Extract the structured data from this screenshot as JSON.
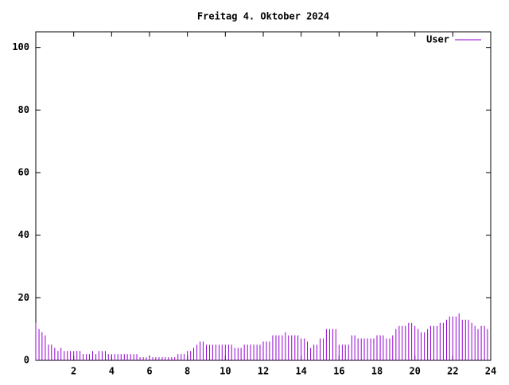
{
  "chart_data": {
    "type": "impulse",
    "title": "Freitag 4. Oktober 2024",
    "xlim": [
      0,
      24
    ],
    "xticks": [
      2,
      4,
      6,
      8,
      10,
      12,
      14,
      16,
      18,
      20,
      22,
      24
    ],
    "ylim": [
      0,
      105
    ],
    "yticks": [
      0,
      20,
      40,
      60,
      80,
      100
    ],
    "legend": "top-right",
    "series": [
      {
        "name": "User",
        "color": "#9400d3",
        "x": [
          0,
          0.17,
          0.33,
          0.5,
          0.67,
          0.83,
          1,
          1.17,
          1.33,
          1.5,
          1.67,
          1.83,
          2,
          2.17,
          2.33,
          2.5,
          2.67,
          2.83,
          3,
          3.17,
          3.33,
          3.5,
          3.67,
          3.83,
          4,
          4.17,
          4.33,
          4.5,
          4.67,
          4.83,
          5,
          5.17,
          5.33,
          5.5,
          5.67,
          5.83,
          6,
          6.17,
          6.33,
          6.5,
          6.67,
          6.83,
          7,
          7.17,
          7.33,
          7.5,
          7.67,
          7.83,
          8,
          8.17,
          8.33,
          8.5,
          8.67,
          8.83,
          9,
          9.17,
          9.33,
          9.5,
          9.67,
          9.83,
          10,
          10.17,
          10.33,
          10.5,
          10.67,
          10.83,
          11,
          11.17,
          11.33,
          11.5,
          11.67,
          11.83,
          12,
          12.17,
          12.33,
          12.5,
          12.67,
          12.83,
          13,
          13.17,
          13.33,
          13.5,
          13.67,
          13.83,
          14,
          14.17,
          14.33,
          14.5,
          14.67,
          14.83,
          15,
          15.17,
          15.33,
          15.5,
          15.67,
          15.83,
          16,
          16.17,
          16.33,
          16.5,
          16.67,
          16.83,
          17,
          17.17,
          17.33,
          17.5,
          17.67,
          17.83,
          18,
          18.17,
          18.33,
          18.5,
          18.67,
          18.83,
          19,
          19.17,
          19.33,
          19.5,
          19.67,
          19.83,
          20,
          20.17,
          20.33,
          20.5,
          20.67,
          20.83,
          21,
          21.17,
          21.33,
          21.5,
          21.67,
          21.83,
          22,
          22.17,
          22.33,
          22.5,
          22.67,
          22.83,
          23,
          23.17,
          23.33,
          23.5,
          23.67,
          23.83
        ],
        "values": [
          12,
          10,
          9,
          8,
          5,
          5,
          4,
          3,
          4,
          3,
          3,
          3,
          3,
          3,
          3,
          2,
          2,
          2,
          3,
          2,
          3,
          3,
          3,
          2,
          2,
          2,
          2,
          2,
          2,
          2,
          2,
          2,
          2,
          1,
          1,
          1,
          1,
          1,
          1,
          1,
          1,
          1,
          1,
          1,
          1,
          2,
          2,
          2,
          3,
          3,
          4,
          5,
          6,
          6,
          5,
          5,
          5,
          5,
          5,
          5,
          5,
          5,
          5,
          4,
          4,
          4,
          5,
          5,
          5,
          5,
          5,
          5,
          6,
          6,
          6,
          8,
          8,
          8,
          8,
          9,
          8,
          8,
          8,
          8,
          7,
          7,
          6,
          4,
          5,
          5,
          7,
          7,
          10,
          10,
          10,
          10,
          5,
          5,
          5,
          5,
          8,
          8,
          7,
          7,
          7,
          7,
          7,
          7,
          8,
          8,
          8,
          7,
          7,
          8,
          10,
          11,
          11,
          11,
          12,
          12,
          11,
          10,
          9,
          9,
          10,
          11,
          11,
          11,
          12,
          12,
          13,
          14,
          14,
          14,
          15,
          13,
          13,
          13,
          12,
          11,
          10,
          11,
          11,
          10
        ]
      }
    ]
  }
}
